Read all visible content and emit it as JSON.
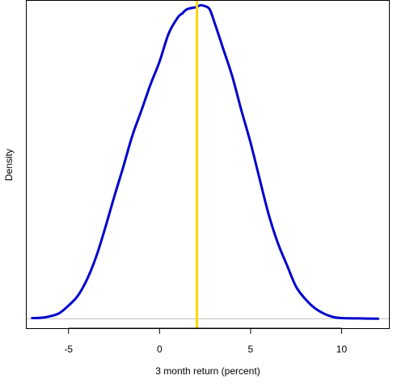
{
  "chart_data": {
    "type": "line",
    "xlabel": "3 month return (percent)",
    "ylabel": "Density",
    "xlim": [
      -7.3,
      12.6
    ],
    "ylim": [
      -0.003,
      0.101
    ],
    "xticks": [
      -5,
      0,
      5,
      10
    ],
    "xtick_labels": [
      "-5",
      "0",
      "5",
      "10"
    ],
    "y_axis_ticks_shown": false,
    "grid": false,
    "series": [
      {
        "color": "#0000CD",
        "x": [
          -7.0,
          -6.5,
          -6.0,
          -5.5,
          -5.0,
          -4.5,
          -4.0,
          -3.5,
          -3.0,
          -2.5,
          -2.0,
          -1.5,
          -1.0,
          -0.5,
          0.0,
          0.5,
          1.0,
          1.25,
          1.5,
          2.0,
          2.25,
          2.5,
          2.75,
          3.0,
          3.5,
          4.0,
          4.5,
          5.0,
          5.5,
          6.0,
          6.5,
          7.0,
          7.5,
          8.0,
          8.5,
          9.0,
          9.5,
          10.0,
          11.0,
          12.0
        ],
        "y": [
          0.0002,
          0.0003,
          0.0008,
          0.0018,
          0.0042,
          0.0072,
          0.0123,
          0.0194,
          0.0286,
          0.0386,
          0.0481,
          0.0581,
          0.0661,
          0.0744,
          0.0817,
          0.0906,
          0.0957,
          0.097,
          0.0983,
          0.099,
          0.0996,
          0.0993,
          0.0983,
          0.0944,
          0.0857,
          0.0769,
          0.0661,
          0.0559,
          0.0443,
          0.033,
          0.024,
          0.017,
          0.0102,
          0.0063,
          0.0035,
          0.0017,
          0.0006,
          0.0002,
          0.0001,
          0.0
        ]
      }
    ],
    "baseline": {
      "y": 0,
      "color": "#BEBEBE"
    },
    "vline": {
      "x": 2.05,
      "color": "#FFD700"
    }
  }
}
